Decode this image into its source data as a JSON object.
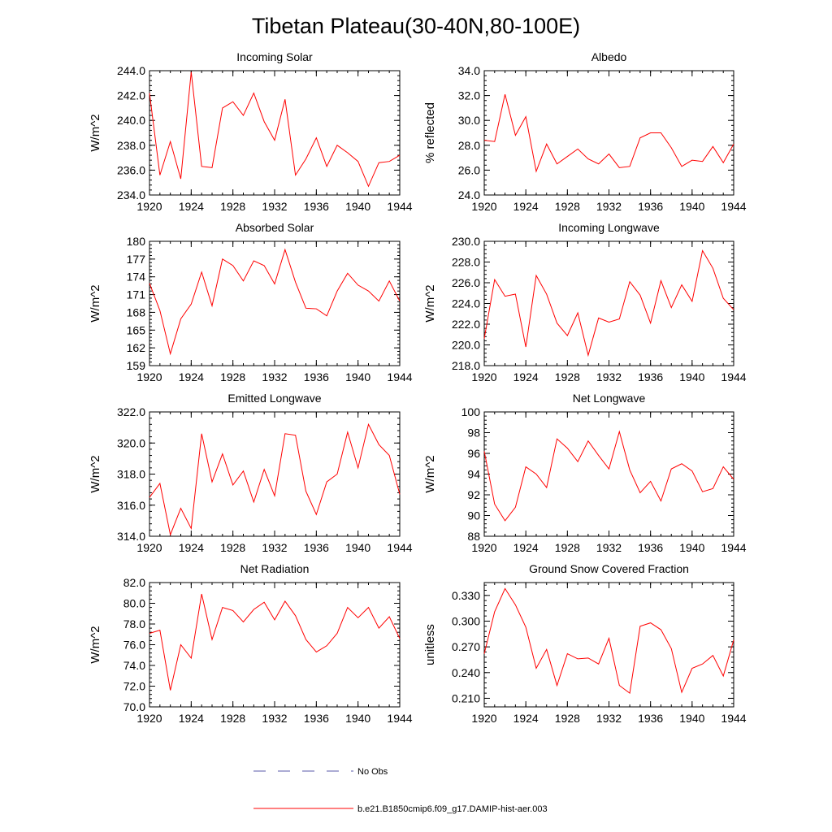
{
  "title": "Tibetan Plateau(30-40N,80-100E)",
  "legend": {
    "obs_label": "No Obs",
    "obs_color": "#5a5aa8",
    "model_label": "b.e21.B1850cmip6.f09_g17.DAMIP-hist-aer.003",
    "model_color": "#ff0000"
  },
  "chart_data": [
    {
      "type": "line",
      "title": "Incoming Solar",
      "ylabel": "W/m^2",
      "x": [
        1920,
        1921,
        1922,
        1923,
        1924,
        1925,
        1926,
        1927,
        1928,
        1929,
        1930,
        1931,
        1932,
        1933,
        1934,
        1935,
        1936,
        1937,
        1938,
        1939,
        1940,
        1941,
        1942,
        1943,
        1944
      ],
      "values": [
        242.2,
        235.6,
        238.3,
        235.3,
        243.9,
        236.3,
        236.2,
        241.0,
        241.5,
        240.4,
        242.2,
        239.9,
        238.4,
        241.7,
        235.6,
        236.9,
        238.6,
        236.3,
        238.0,
        237.4,
        236.7,
        234.7,
        236.6,
        236.7,
        237.2
      ],
      "xlim": [
        1920,
        1944
      ],
      "ylim": [
        234.0,
        244.0
      ],
      "yticks": [
        "234.0",
        "236.0",
        "238.0",
        "240.0",
        "242.0",
        "244.0"
      ],
      "xticks": [
        "1920",
        "1924",
        "1928",
        "1932",
        "1936",
        "1940",
        "1944"
      ],
      "color": "#ff0000"
    },
    {
      "type": "line",
      "title": "Albedo",
      "ylabel": "% reflected",
      "x": [
        1920,
        1921,
        1922,
        1923,
        1924,
        1925,
        1926,
        1927,
        1928,
        1929,
        1930,
        1931,
        1932,
        1933,
        1934,
        1935,
        1936,
        1937,
        1938,
        1939,
        1940,
        1941,
        1942,
        1943,
        1944
      ],
      "values": [
        28.4,
        28.3,
        32.1,
        28.8,
        30.3,
        25.9,
        28.1,
        26.5,
        27.1,
        27.7,
        26.9,
        26.5,
        27.3,
        26.2,
        26.3,
        28.6,
        29.0,
        29.0,
        27.8,
        26.3,
        26.8,
        26.7,
        27.9,
        26.6,
        28.1
      ],
      "xlim": [
        1920,
        1944
      ],
      "ylim": [
        24.0,
        34.0
      ],
      "yticks": [
        "24.0",
        "26.0",
        "28.0",
        "30.0",
        "32.0",
        "34.0"
      ],
      "xticks": [
        "1920",
        "1924",
        "1928",
        "1932",
        "1936",
        "1940",
        "1944"
      ],
      "color": "#ff0000"
    },
    {
      "type": "line",
      "title": "Absorbed Solar",
      "ylabel": "W/m^2",
      "x": [
        1920,
        1921,
        1922,
        1923,
        1924,
        1925,
        1926,
        1927,
        1928,
        1929,
        1930,
        1931,
        1932,
        1933,
        1934,
        1935,
        1936,
        1937,
        1938,
        1939,
        1940,
        1941,
        1942,
        1943,
        1944
      ],
      "values": [
        172.9,
        168.3,
        161.0,
        166.9,
        169.4,
        174.8,
        169.1,
        177.0,
        175.9,
        173.3,
        176.7,
        175.9,
        172.8,
        178.6,
        173.1,
        168.7,
        168.6,
        167.4,
        171.6,
        174.6,
        172.6,
        171.6,
        169.9,
        173.3,
        169.9
      ],
      "xlim": [
        1920,
        1944
      ],
      "ylim": [
        159,
        180
      ],
      "yticks": [
        "159",
        "162",
        "165",
        "168",
        "171",
        "174",
        "177",
        "180"
      ],
      "xticks": [
        "1920",
        "1924",
        "1928",
        "1932",
        "1936",
        "1940",
        "1944"
      ],
      "color": "#ff0000"
    },
    {
      "type": "line",
      "title": "Incoming Longwave",
      "ylabel": "W/m^2",
      "x": [
        1920,
        1921,
        1922,
        1923,
        1924,
        1925,
        1926,
        1927,
        1928,
        1929,
        1930,
        1931,
        1932,
        1933,
        1934,
        1935,
        1936,
        1937,
        1938,
        1939,
        1940,
        1941,
        1942,
        1943,
        1944
      ],
      "values": [
        220.6,
        226.3,
        224.7,
        224.9,
        219.8,
        226.7,
        224.9,
        222.1,
        220.9,
        223.1,
        219.0,
        222.6,
        222.2,
        222.5,
        226.1,
        224.8,
        222.1,
        226.2,
        223.6,
        225.8,
        224.2,
        229.1,
        227.4,
        224.5,
        223.4
      ],
      "xlim": [
        1920,
        1944
      ],
      "ylim": [
        218.0,
        230.0
      ],
      "yticks": [
        "218.0",
        "220.0",
        "222.0",
        "224.0",
        "226.0",
        "228.0",
        "230.0"
      ],
      "xticks": [
        "1920",
        "1924",
        "1928",
        "1932",
        "1936",
        "1940",
        "1944"
      ],
      "color": "#ff0000"
    },
    {
      "type": "line",
      "title": "Emitted Longwave",
      "ylabel": "W/m^2",
      "x": [
        1920,
        1921,
        1922,
        1923,
        1924,
        1925,
        1926,
        1927,
        1928,
        1929,
        1930,
        1931,
        1932,
        1933,
        1934,
        1935,
        1936,
        1937,
        1938,
        1939,
        1940,
        1941,
        1942,
        1943,
        1944
      ],
      "values": [
        316.5,
        317.4,
        314.1,
        315.8,
        314.5,
        320.6,
        317.5,
        319.3,
        317.3,
        318.2,
        316.2,
        318.3,
        316.6,
        320.6,
        320.5,
        316.9,
        315.4,
        317.5,
        318.0,
        320.7,
        318.4,
        321.2,
        319.9,
        319.2,
        316.7
      ],
      "xlim": [
        1920,
        1944
      ],
      "ylim": [
        314.0,
        322.0
      ],
      "yticks": [
        "314.0",
        "316.0",
        "318.0",
        "320.0",
        "322.0"
      ],
      "xticks": [
        "1920",
        "1924",
        "1928",
        "1932",
        "1936",
        "1940",
        "1944"
      ],
      "color": "#ff0000"
    },
    {
      "type": "line",
      "title": "Net Longwave",
      "ylabel": "W/m^2",
      "x": [
        1920,
        1921,
        1922,
        1923,
        1924,
        1925,
        1926,
        1927,
        1928,
        1929,
        1930,
        1931,
        1932,
        1933,
        1934,
        1935,
        1936,
        1937,
        1938,
        1939,
        1940,
        1941,
        1942,
        1943,
        1944
      ],
      "values": [
        96.2,
        91.1,
        89.5,
        90.8,
        94.7,
        94.0,
        92.7,
        97.4,
        96.5,
        95.2,
        97.2,
        95.8,
        94.5,
        98.1,
        94.4,
        92.2,
        93.3,
        91.4,
        94.5,
        95.0,
        94.3,
        92.3,
        92.6,
        94.7,
        93.5
      ],
      "xlim": [
        1920,
        1944
      ],
      "ylim": [
        88,
        100
      ],
      "yticks": [
        "88",
        "90",
        "92",
        "94",
        "96",
        "98",
        "100"
      ],
      "xticks": [
        "1920",
        "1924",
        "1928",
        "1932",
        "1936",
        "1940",
        "1944"
      ],
      "color": "#ff0000"
    },
    {
      "type": "line",
      "title": "Net Radiation",
      "ylabel": "W/m^2",
      "x": [
        1920,
        1921,
        1922,
        1923,
        1924,
        1925,
        1926,
        1927,
        1928,
        1929,
        1930,
        1931,
        1932,
        1933,
        1934,
        1935,
        1936,
        1937,
        1938,
        1939,
        1940,
        1941,
        1942,
        1943,
        1944
      ],
      "values": [
        77.1,
        77.4,
        71.6,
        76.0,
        74.7,
        80.9,
        76.5,
        79.6,
        79.3,
        78.2,
        79.4,
        80.1,
        78.4,
        80.2,
        78.8,
        76.5,
        75.3,
        75.9,
        77.1,
        79.6,
        78.6,
        79.6,
        77.6,
        78.7,
        76.6
      ],
      "xlim": [
        1920,
        1944
      ],
      "ylim": [
        70.0,
        82.0
      ],
      "yticks": [
        "70.0",
        "72.0",
        "74.0",
        "76.0",
        "78.0",
        "80.0",
        "82.0"
      ],
      "xticks": [
        "1920",
        "1924",
        "1928",
        "1932",
        "1936",
        "1940",
        "1944"
      ],
      "color": "#ff0000"
    },
    {
      "type": "line",
      "title": "Ground Snow Covered Fraction",
      "ylabel": "unitless",
      "x": [
        1920,
        1921,
        1922,
        1923,
        1924,
        1925,
        1926,
        1927,
        1928,
        1929,
        1930,
        1931,
        1932,
        1933,
        1934,
        1935,
        1936,
        1937,
        1938,
        1939,
        1940,
        1941,
        1942,
        1943,
        1944
      ],
      "values": [
        0.262,
        0.311,
        0.338,
        0.319,
        0.293,
        0.245,
        0.267,
        0.225,
        0.262,
        0.256,
        0.257,
        0.25,
        0.28,
        0.225,
        0.216,
        0.294,
        0.298,
        0.29,
        0.268,
        0.217,
        0.245,
        0.25,
        0.26,
        0.236,
        0.278
      ],
      "xlim": [
        1920,
        1944
      ],
      "ylim": [
        0.2,
        0.345
      ],
      "yticks": [
        "0.210",
        "0.240",
        "0.270",
        "0.300",
        "0.330"
      ],
      "xticks": [
        "1920",
        "1924",
        "1928",
        "1932",
        "1936",
        "1940",
        "1944"
      ],
      "color": "#ff0000"
    }
  ]
}
